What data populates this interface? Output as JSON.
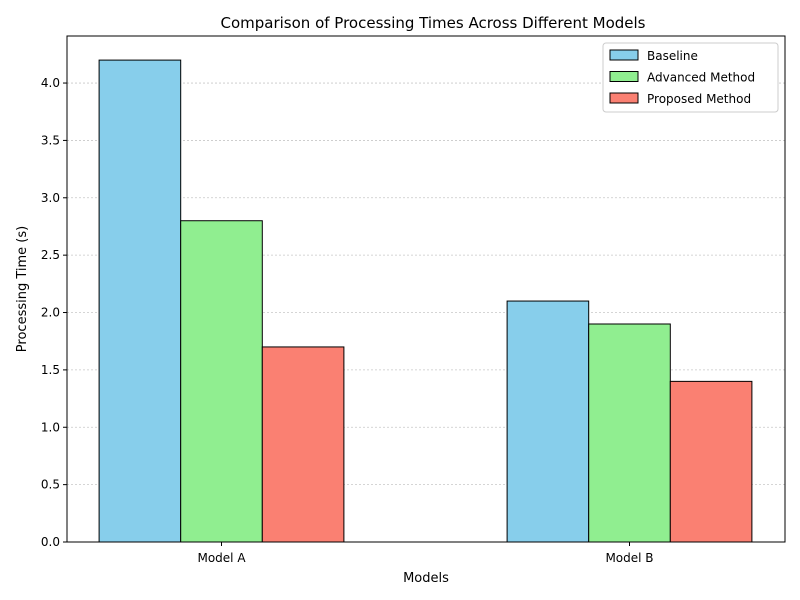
{
  "chart_data": {
    "type": "bar",
    "title": "Comparison of Processing Times Across Different Models",
    "xlabel": "Models",
    "ylabel": "Processing Time (s)",
    "categories": [
      "Model A",
      "Model B"
    ],
    "series": [
      {
        "name": "Baseline",
        "values": [
          4.2,
          2.1
        ],
        "color": "#87CEEB"
      },
      {
        "name": "Advanced Method",
        "values": [
          2.8,
          1.9
        ],
        "color": "#90EE90"
      },
      {
        "name": "Proposed Method",
        "values": [
          1.7,
          1.4
        ],
        "color": "#FA8072"
      }
    ],
    "ylim": [
      0,
      4.41
    ],
    "yticks": [
      0.0,
      0.5,
      1.0,
      1.5,
      2.0,
      2.5,
      3.0,
      3.5,
      4.0
    ],
    "ytick_labels": [
      "0.0",
      "0.5",
      "1.0",
      "1.5",
      "2.0",
      "2.5",
      "3.0",
      "3.5",
      "4.0"
    ],
    "grid": "y-dotted",
    "legend_position": "top-right"
  }
}
